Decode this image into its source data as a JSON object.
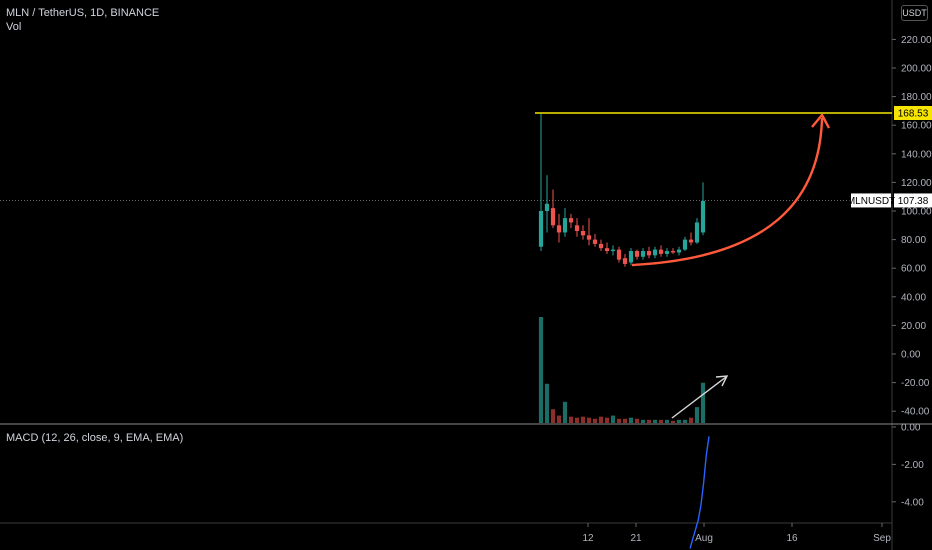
{
  "header": {
    "symbol_line": "MLN / TetherUS, 1D, BINANCE",
    "volume_label": "Vol",
    "macd_label": "MACD (12, 26, close, 9, EMA, EMA)",
    "currency_button": "USDT"
  },
  "colors": {
    "background": "#000000",
    "up": "#26a69a",
    "down": "#ef5350",
    "up_volume": "#1b6e66",
    "down_volume": "#8c2f2c",
    "resistance": "#f5e500",
    "arrow": "#ff5a3c",
    "volume_arrow": "#d9d9d9",
    "macd_line": "#2962ff"
  },
  "chart_data": [
    {
      "type": "candlestick",
      "price_axis": {
        "ticks": [
          "220.00",
          "200.00",
          "180.00",
          "160.00",
          "140.00",
          "120.00",
          "100.00",
          "80.00",
          "60.00",
          "40.00",
          "20.00",
          "0.00",
          "-20.00",
          "-40.00"
        ],
        "tick_values": [
          220,
          200,
          180,
          160,
          140,
          120,
          100,
          80,
          60,
          40,
          20,
          0,
          -20,
          -40
        ]
      },
      "x_axis": {
        "ticks": [
          "12",
          "21",
          "Aug",
          "16",
          "Sep"
        ]
      },
      "resistance_level": {
        "value": 168.53,
        "label": "168.53"
      },
      "last_price": {
        "value": 107.38,
        "label": "107.38",
        "symbol_tag": "MLNUSDT"
      },
      "candles": [
        {
          "o": 75,
          "h": 168,
          "l": 72,
          "c": 100
        },
        {
          "o": 100,
          "h": 125,
          "l": 85,
          "c": 105
        },
        {
          "o": 102,
          "h": 115,
          "l": 88,
          "c": 90
        },
        {
          "o": 90,
          "h": 98,
          "l": 78,
          "c": 85
        },
        {
          "o": 85,
          "h": 102,
          "l": 82,
          "c": 95
        },
        {
          "o": 95,
          "h": 98,
          "l": 88,
          "c": 92
        },
        {
          "o": 90,
          "h": 95,
          "l": 82,
          "c": 86
        },
        {
          "o": 86,
          "h": 90,
          "l": 80,
          "c": 83
        },
        {
          "o": 83,
          "h": 95,
          "l": 76,
          "c": 80
        },
        {
          "o": 80,
          "h": 84,
          "l": 75,
          "c": 77
        },
        {
          "o": 77,
          "h": 80,
          "l": 72,
          "c": 74
        },
        {
          "o": 74,
          "h": 78,
          "l": 70,
          "c": 72
        },
        {
          "o": 72,
          "h": 76,
          "l": 69,
          "c": 73
        },
        {
          "o": 73,
          "h": 75,
          "l": 64,
          "c": 66
        },
        {
          "o": 67,
          "h": 70,
          "l": 61,
          "c": 63
        },
        {
          "o": 64,
          "h": 74,
          "l": 62,
          "c": 72
        },
        {
          "o": 72,
          "h": 73,
          "l": 66,
          "c": 68
        },
        {
          "o": 68,
          "h": 74,
          "l": 66,
          "c": 72
        },
        {
          "o": 72,
          "h": 75,
          "l": 67,
          "c": 69
        },
        {
          "o": 69,
          "h": 75,
          "l": 67,
          "c": 73
        },
        {
          "o": 73,
          "h": 76,
          "l": 68,
          "c": 70
        },
        {
          "o": 70,
          "h": 74,
          "l": 68,
          "c": 72
        },
        {
          "o": 72,
          "h": 74,
          "l": 70,
          "c": 71
        },
        {
          "o": 71,
          "h": 75,
          "l": 69,
          "c": 73
        },
        {
          "o": 73,
          "h": 82,
          "l": 72,
          "c": 80
        },
        {
          "o": 80,
          "h": 85,
          "l": 76,
          "c": 78
        },
        {
          "o": 78,
          "h": 95,
          "l": 77,
          "c": 92
        },
        {
          "o": 85,
          "h": 120,
          "l": 83,
          "c": 107
        }
      ],
      "volume_relative": [
        1.0,
        0.37,
        0.13,
        0.07,
        0.2,
        0.06,
        0.05,
        0.06,
        0.05,
        0.04,
        0.06,
        0.05,
        0.07,
        0.04,
        0.04,
        0.05,
        0.04,
        0.03,
        0.03,
        0.03,
        0.03,
        0.03,
        0.02,
        0.03,
        0.03,
        0.05,
        0.15,
        0.38
      ],
      "macd_axis": {
        "ticks": [
          "0.00",
          "-2.00",
          "-4.00"
        ],
        "tick_values": [
          0,
          -2,
          -4
        ]
      },
      "macd_values": [
        -6.5,
        -6.0,
        -5.5,
        -5.0,
        -4.2,
        -3.0,
        -1.5,
        -0.5
      ]
    }
  ]
}
